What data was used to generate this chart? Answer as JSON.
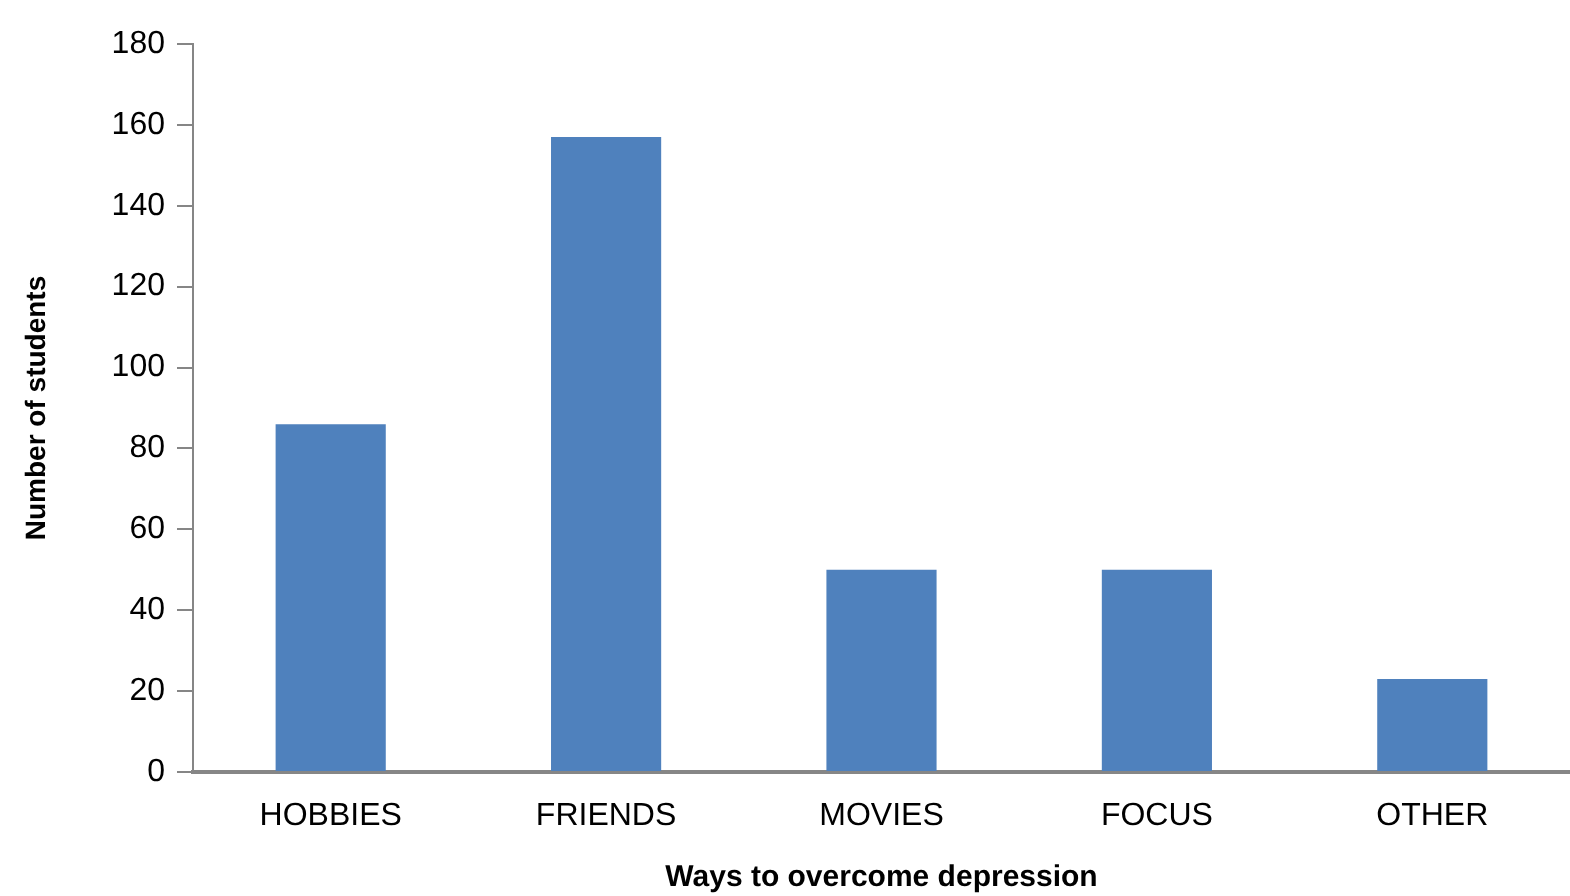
{
  "chart_data": {
    "type": "bar",
    "categories": [
      "HOBBIES",
      "FRIENDS",
      "MOVIES",
      "FOCUS",
      "OTHER"
    ],
    "values": [
      86,
      157,
      50,
      50,
      23
    ],
    "color": "#4f81bd",
    "xlabel": "Ways to overcome depression",
    "ylabel": "Number of students",
    "ylim": [
      0,
      180
    ],
    "yticks": [
      0,
      20,
      40,
      60,
      80,
      100,
      120,
      140,
      160,
      180
    ],
    "grid": false
  }
}
